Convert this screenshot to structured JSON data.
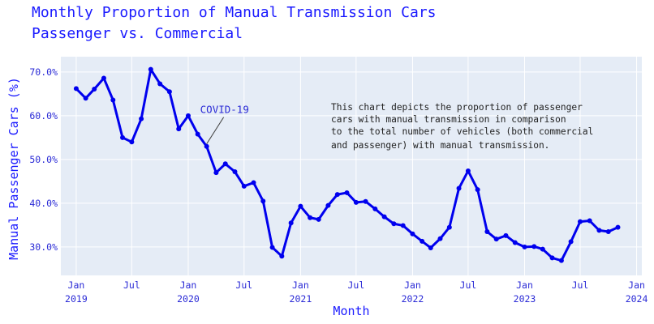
{
  "chart_data": {
    "type": "line",
    "title_lines": [
      "Monthly Proportion of Manual Transmission Cars",
      "Passenger vs. Commercial"
    ],
    "xlabel": "Month",
    "ylabel": "Manual Passenger Cars (%)",
    "ylim": [
      23.5,
      73.5
    ],
    "xlim": [
      "2018-11-12",
      "2024-01-18"
    ],
    "grid": true,
    "x_ticks": [
      {
        "date": "2019-01-01",
        "line1": "Jan",
        "line2": "2019"
      },
      {
        "date": "2019-07-01",
        "line1": "Jul",
        "line2": ""
      },
      {
        "date": "2020-01-01",
        "line1": "Jan",
        "line2": "2020"
      },
      {
        "date": "2020-07-01",
        "line1": "Jul",
        "line2": ""
      },
      {
        "date": "2021-01-01",
        "line1": "Jan",
        "line2": "2021"
      },
      {
        "date": "2021-07-01",
        "line1": "Jul",
        "line2": ""
      },
      {
        "date": "2022-01-01",
        "line1": "Jan",
        "line2": "2022"
      },
      {
        "date": "2022-07-01",
        "line1": "Jul",
        "line2": ""
      },
      {
        "date": "2023-01-01",
        "line1": "Jan",
        "line2": "2023"
      },
      {
        "date": "2023-07-01",
        "line1": "Jul",
        "line2": ""
      },
      {
        "date": "2024-01-01",
        "line1": "Jan",
        "line2": "2024"
      }
    ],
    "y_ticks": [
      {
        "value": 30,
        "label": "30.0%"
      },
      {
        "value": 40,
        "label": "40.0%"
      },
      {
        "value": 50,
        "label": "50.0%"
      },
      {
        "value": 60,
        "label": "60.0%"
      },
      {
        "value": 70,
        "label": "70.0%"
      }
    ],
    "x": [
      "2019-01",
      "2019-02",
      "2019-03",
      "2019-04",
      "2019-05",
      "2019-06",
      "2019-07",
      "2019-08",
      "2019-09",
      "2019-10",
      "2019-11",
      "2019-12",
      "2020-01",
      "2020-02",
      "2020-03",
      "2020-04",
      "2020-05",
      "2020-06",
      "2020-07",
      "2020-08",
      "2020-09",
      "2020-10",
      "2020-11",
      "2020-12",
      "2021-01",
      "2021-02",
      "2021-03",
      "2021-04",
      "2021-05",
      "2021-06",
      "2021-07",
      "2021-08",
      "2021-09",
      "2021-10",
      "2021-11",
      "2021-12",
      "2022-01",
      "2022-02",
      "2022-03",
      "2022-04",
      "2022-05",
      "2022-06",
      "2022-07",
      "2022-08",
      "2022-09",
      "2022-10",
      "2022-11",
      "2022-12",
      "2023-01",
      "2023-02",
      "2023-03",
      "2023-04",
      "2023-05",
      "2023-06",
      "2023-07",
      "2023-08",
      "2023-09",
      "2023-10",
      "2023-11"
    ],
    "values": [
      66.2,
      64.0,
      66.1,
      68.6,
      63.6,
      55.0,
      54.0,
      59.3,
      70.6,
      67.3,
      65.5,
      57.0,
      60.0,
      55.8,
      53.0,
      47.0,
      49.0,
      47.2,
      43.9,
      44.7,
      40.5,
      29.9,
      27.9,
      35.5,
      39.3,
      36.7,
      36.3,
      39.5,
      42.0,
      42.4,
      40.2,
      40.4,
      38.7,
      36.9,
      35.3,
      34.9,
      33.0,
      31.3,
      29.8,
      31.9,
      34.5,
      43.4,
      47.4,
      43.1,
      33.5,
      31.8,
      32.6,
      31.0,
      30.0,
      30.1,
      29.5,
      27.5,
      26.9,
      31.2,
      35.8,
      36.0,
      33.8,
      33.5,
      34.5
    ],
    "series_color": "#0000ee",
    "annotation": {
      "text": "COVID-19",
      "x": "2020-03",
      "y": 53.0
    },
    "note_lines": [
      "This chart depicts the proportion of passenger",
      "cars with manual transmission in comparison",
      "to the total number of vehicles (both commercial",
      "and passenger) with manual transmission."
    ]
  }
}
